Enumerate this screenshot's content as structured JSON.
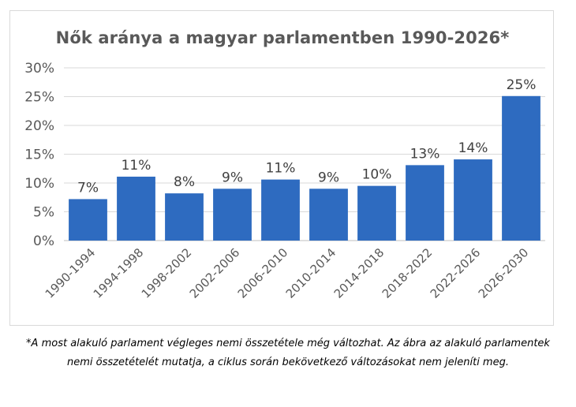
{
  "chart_data": {
    "type": "bar",
    "title": "Nők aránya a magyar parlamentben 1990-2026*",
    "xlabel": "",
    "ylabel": "",
    "categories": [
      "1990-1994",
      "1994-1998",
      "1998-2002",
      "2002-2006",
      "2006-2010",
      "2010-2014",
      "2014-2018",
      "2018-2022",
      "2022-2026",
      "2026-2030"
    ],
    "values": [
      7.2,
      11.1,
      8.2,
      9.0,
      10.6,
      9.0,
      9.5,
      13.1,
      14.1,
      25.1
    ],
    "data_labels": [
      "7%",
      "11%",
      "8%",
      "9%",
      "11%",
      "9%",
      "10%",
      "13%",
      "14%",
      "25%"
    ],
    "ylim": [
      0,
      30
    ],
    "yticks": [
      0,
      5,
      10,
      15,
      20,
      25,
      30
    ],
    "ytick_labels": [
      "0%",
      "5%",
      "10%",
      "15%",
      "20%",
      "25%",
      "30%"
    ],
    "grid": true,
    "legend": "none",
    "bar_color": "#2e6bc0"
  },
  "footnote": "*A most alakuló parlament végleges nemi összetétele még változhat. Az ábra az alakuló parlamentek nemi összetételét mutatja, a ciklus során bekövetkező változásokat nem jeleníti meg."
}
